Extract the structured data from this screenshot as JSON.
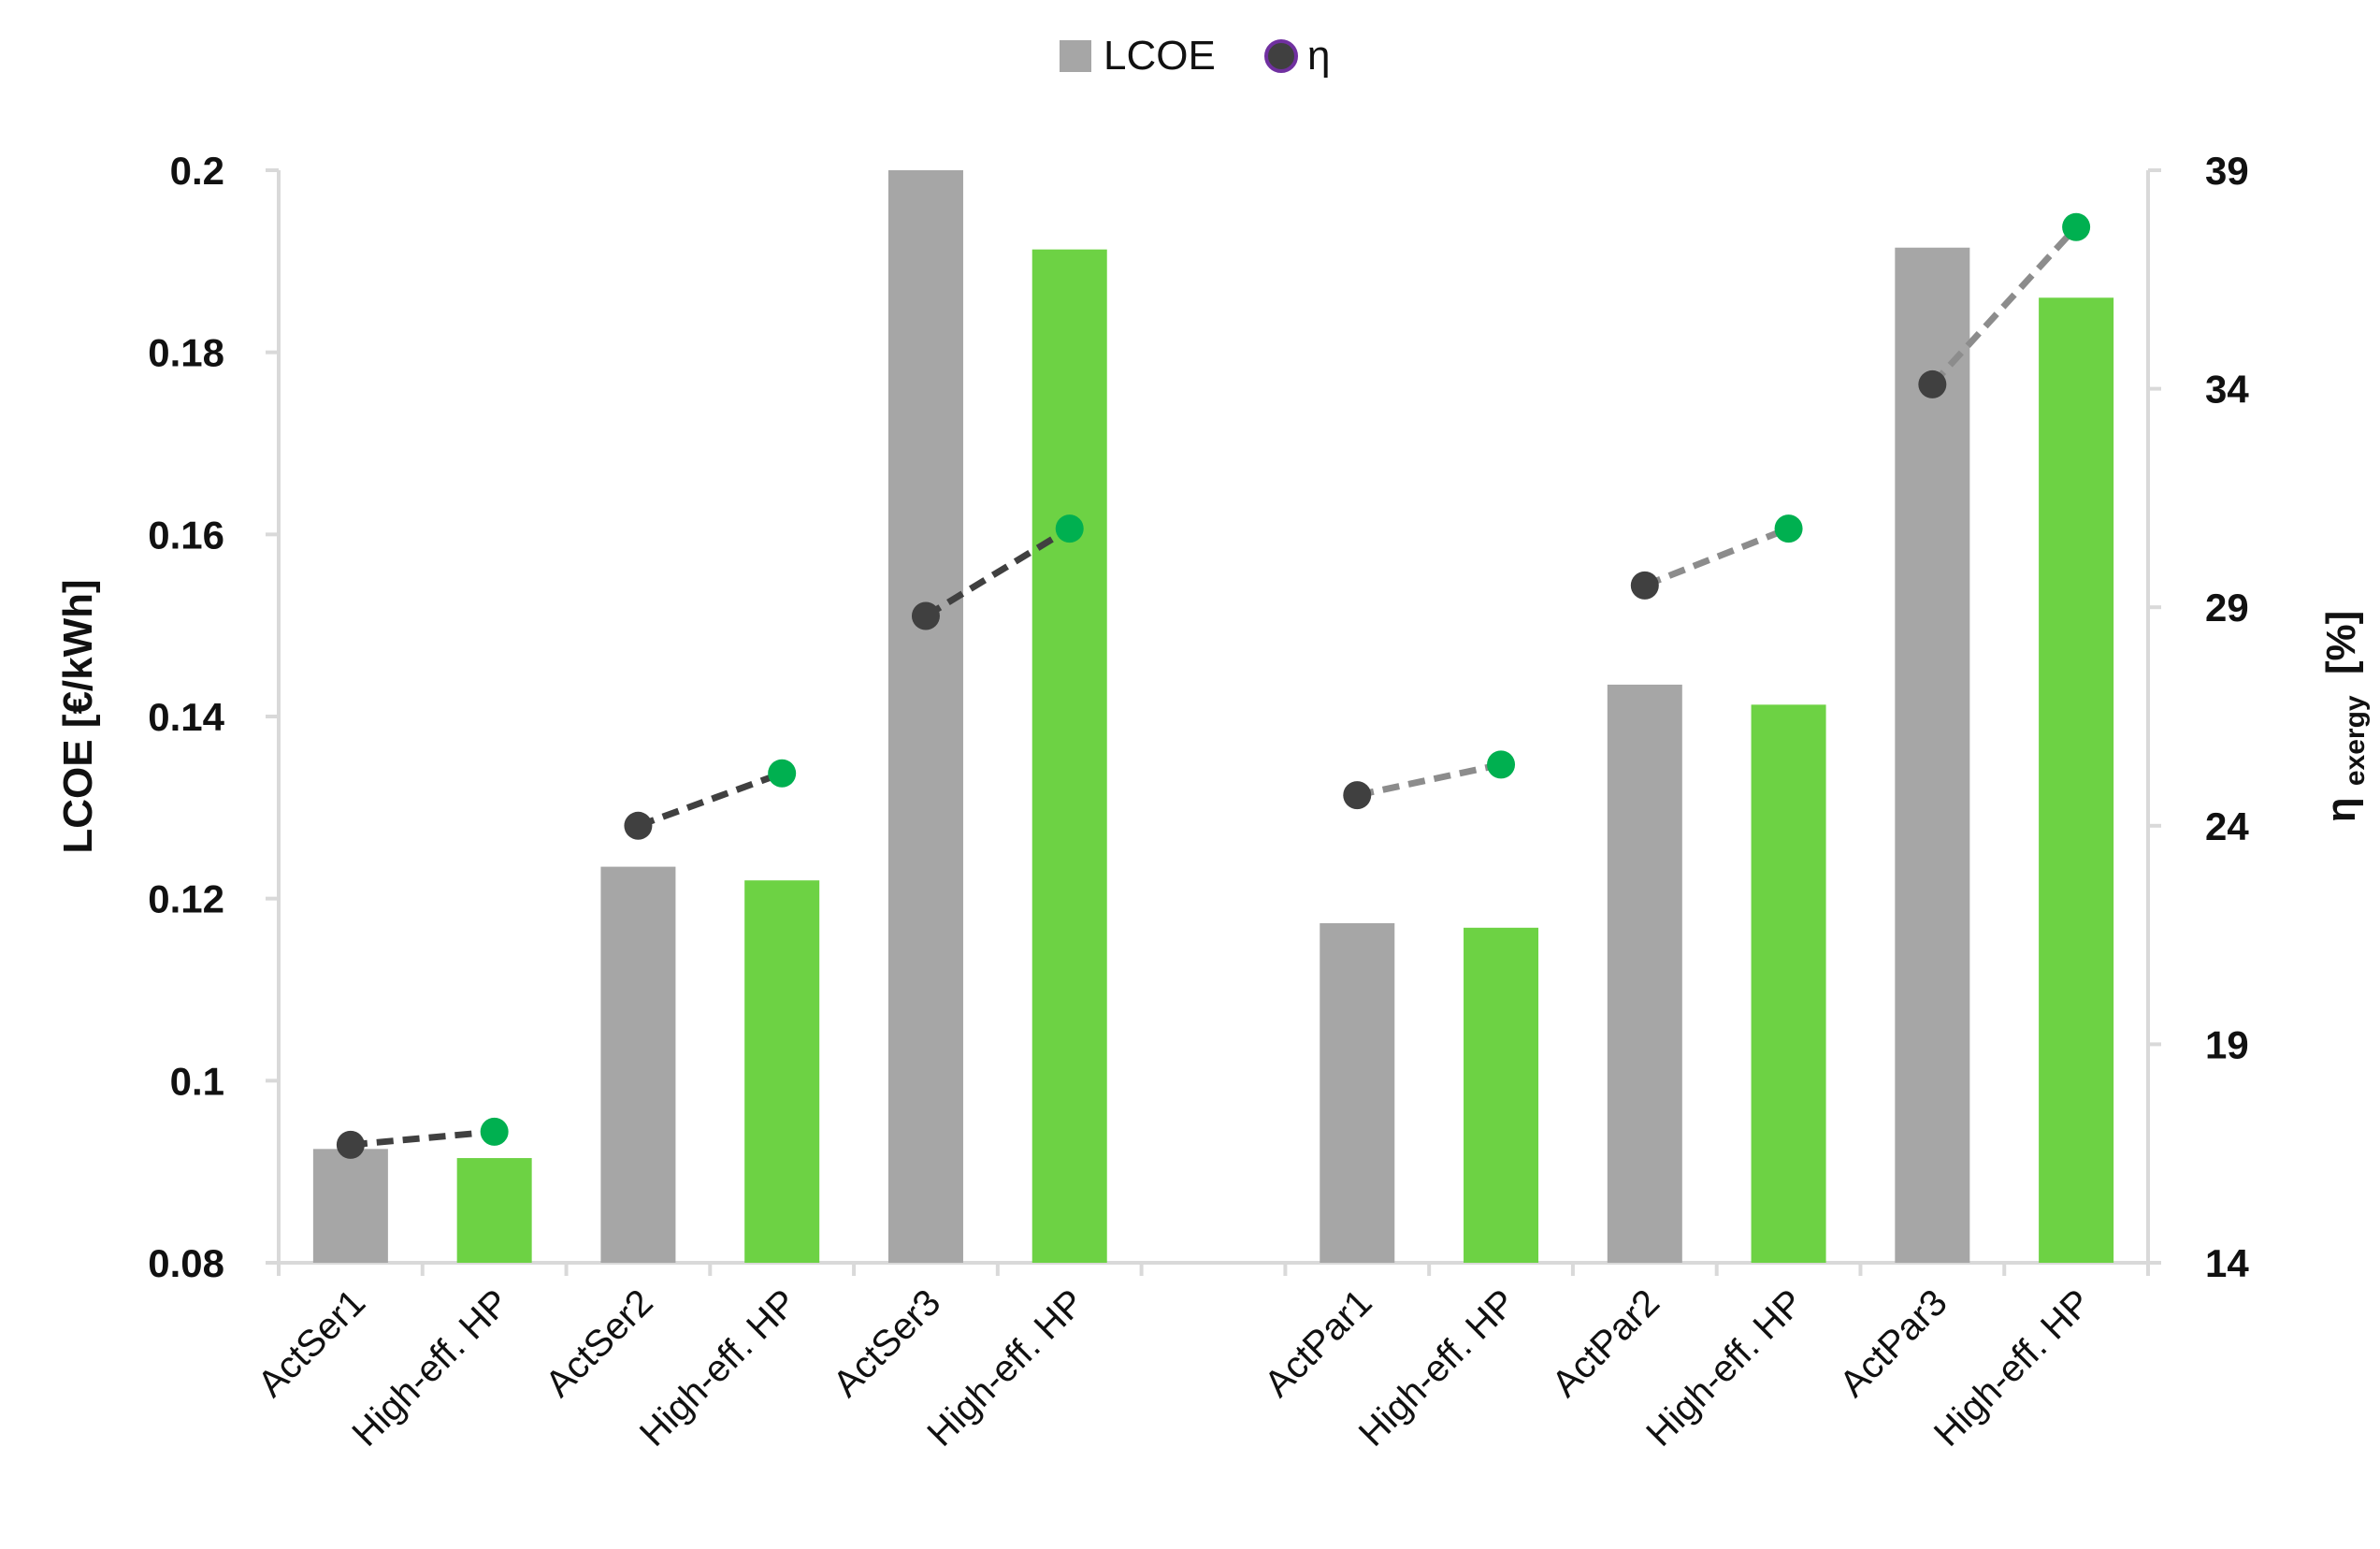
{
  "chart_data": {
    "type": "bar",
    "categories": [
      "ActSer1",
      "High-eff. HP",
      "ActSer2",
      "High-eff. HP",
      "ActSer3",
      "High-eff. HP",
      "",
      "ActPar1",
      "High-eff. HP",
      "ActPar2",
      "High-eff. HP",
      "ActPar3",
      "High-eff. HP"
    ],
    "series": [
      {
        "name": "LCOE",
        "axis": "left",
        "values": [
          0.0925,
          0.0915,
          0.1235,
          0.122,
          0.2,
          0.1913,
          null,
          0.1173,
          0.1168,
          0.1435,
          0.1413,
          0.1915,
          0.186
        ],
        "colors": [
          "#a6a6a6",
          "#6dd244",
          "#a6a6a6",
          "#6dd244",
          "#a6a6a6",
          "#6dd244",
          null,
          "#a6a6a6",
          "#6dd244",
          "#a6a6a6",
          "#6dd244",
          "#a6a6a6",
          "#6dd244"
        ]
      },
      {
        "name": "η",
        "axis": "right",
        "type": "scatter-connected",
        "values": [
          16.7,
          17.0,
          24.0,
          25.2,
          28.8,
          30.8,
          null,
          24.7,
          25.4,
          29.5,
          30.8,
          34.1,
          37.7
        ],
        "colors": [
          "#404040",
          "#00b050",
          "#404040",
          "#00b050",
          "#404040",
          "#00b050",
          null,
          "#404040",
          "#00b050",
          "#404040",
          "#00b050",
          "#404040",
          "#00b050"
        ],
        "segments": [
          {
            "from": 0,
            "to": 1,
            "line_color": "#404040"
          },
          {
            "from": 2,
            "to": 3,
            "line_color": "#404040"
          },
          {
            "from": 4,
            "to": 5,
            "line_color": "#404040"
          },
          {
            "from": 7,
            "to": 8,
            "line_color": "#8c8c8c"
          },
          {
            "from": 9,
            "to": 10,
            "line_color": "#8c8c8c"
          },
          {
            "from": 11,
            "to": 12,
            "line_color": "#8c8c8c"
          }
        ]
      }
    ],
    "y_left": {
      "label": "LCOE [€/kWh]",
      "ylim": [
        0.08,
        0.2
      ],
      "ticks": [
        "0.08",
        "0.1",
        "0.12",
        "0.14",
        "0.16",
        "0.18",
        "0.2"
      ]
    },
    "y_right": {
      "label_main": "η",
      "label_sub": "exergy",
      "label_unit": "[%]",
      "ylim": [
        14,
        39
      ],
      "ticks": [
        "14",
        "19",
        "24",
        "29",
        "34",
        "39"
      ]
    },
    "legend": {
      "position": "top-center",
      "items": [
        {
          "label": "LCOE",
          "marker": "square",
          "color": "#a6a6a6"
        },
        {
          "label": "η",
          "marker": "circle",
          "color": "#404040",
          "edge": "#7030a0"
        }
      ]
    },
    "grid": false
  }
}
